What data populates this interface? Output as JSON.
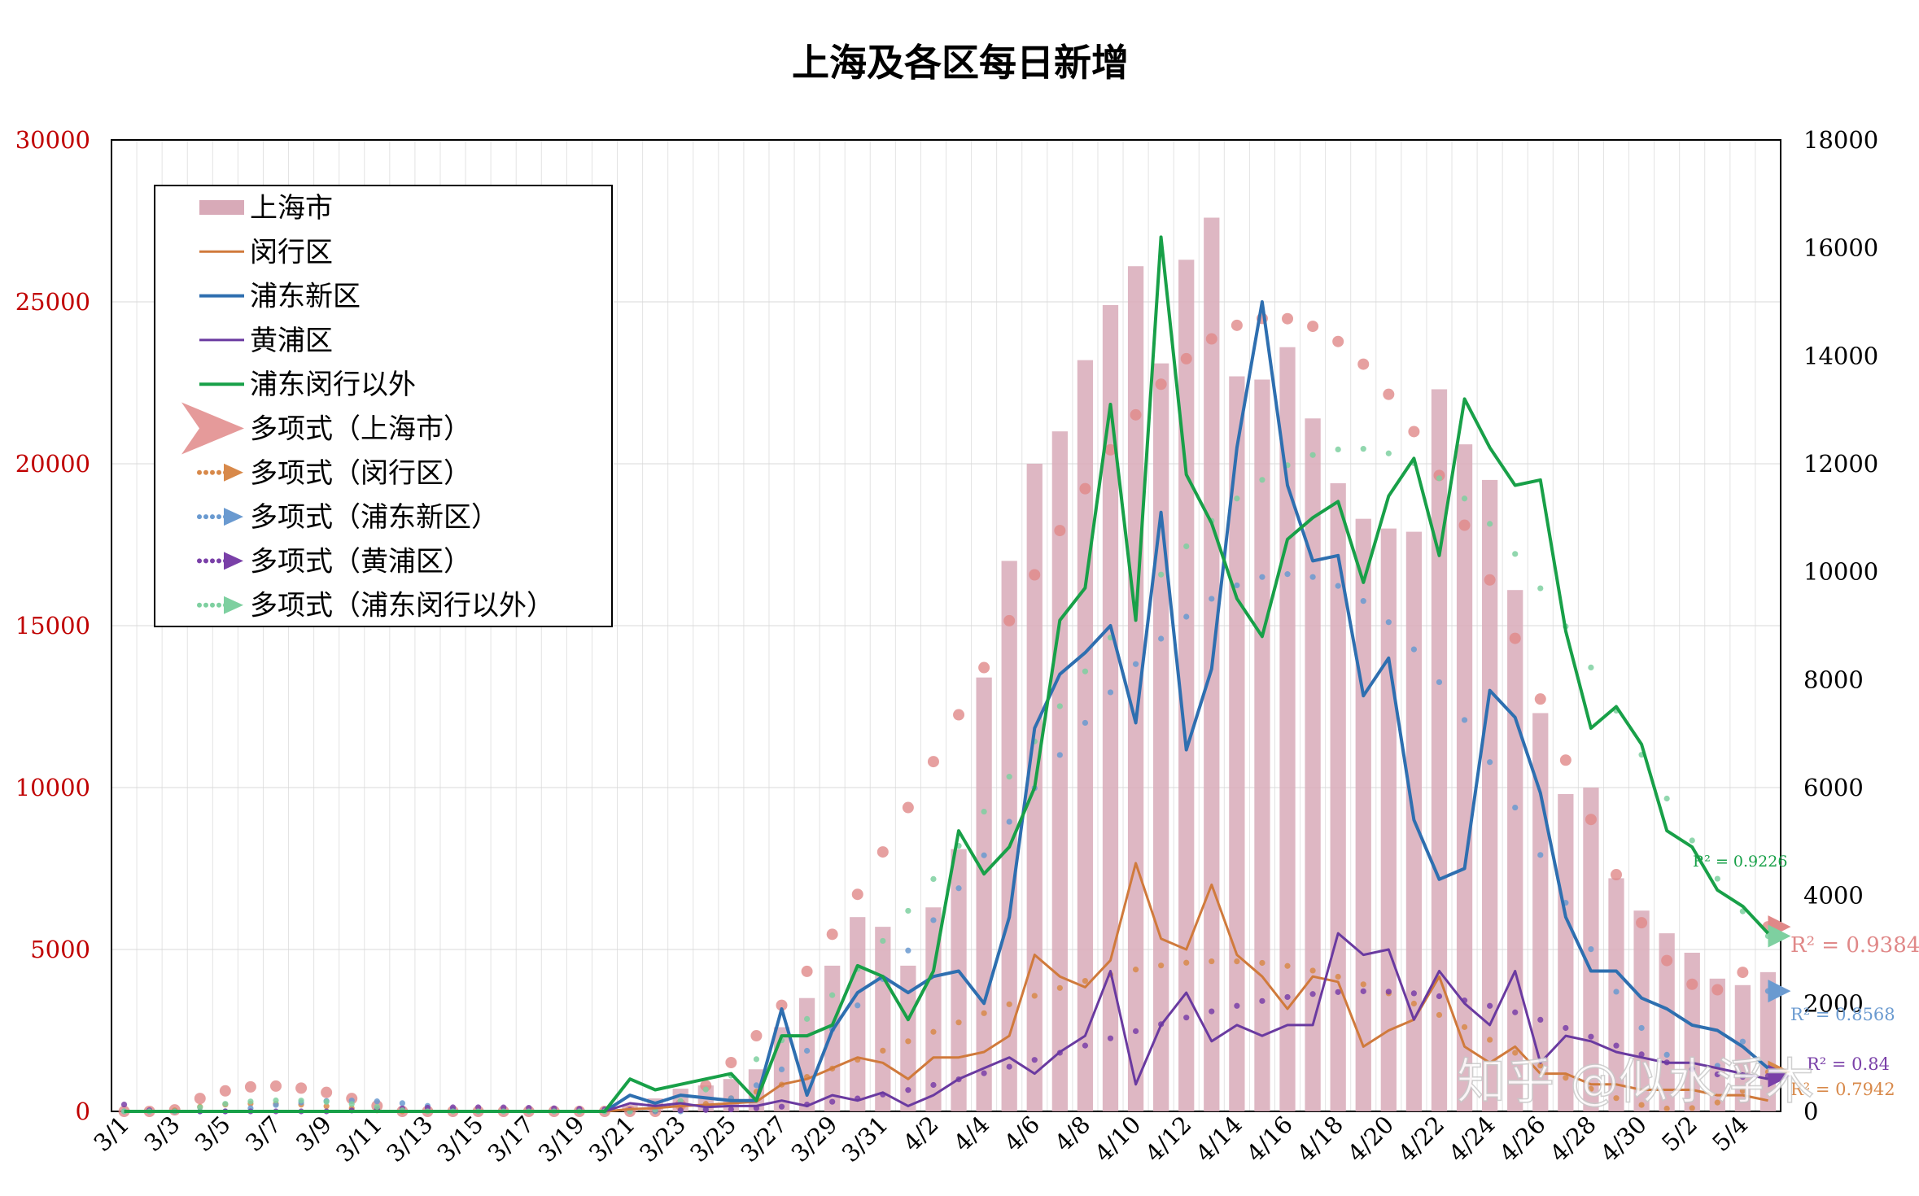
{
  "chart_data": {
    "type": "bar+line",
    "title": "上海及各区每日新增",
    "x_tick_labels": [
      "3/1",
      "3/3",
      "3/5",
      "3/7",
      "3/9",
      "3/11",
      "3/13",
      "3/15",
      "3/17",
      "3/19",
      "3/21",
      "3/23",
      "3/25",
      "3/27",
      "3/29",
      "3/31",
      "4/2",
      "4/4",
      "4/6",
      "4/8",
      "4/10",
      "4/12",
      "4/14",
      "4/16",
      "4/18",
      "4/20",
      "4/22",
      "4/24",
      "4/26",
      "4/28",
      "4/30",
      "5/2",
      "5/4"
    ],
    "y_left": {
      "range": [
        0,
        30000
      ],
      "ticks": [
        "0",
        "5000",
        "10000",
        "15000",
        "20000",
        "25000",
        "30000"
      ],
      "color": "#c00000"
    },
    "y_right": {
      "range": [
        0,
        18000
      ],
      "ticks": [
        "0",
        "2000",
        "4000",
        "6000",
        "8000",
        "10000",
        "12000",
        "14000",
        "16000",
        "18000"
      ],
      "color": "#000000"
    },
    "grid": true,
    "legend_position": "top-left",
    "legend": [
      "上海市",
      "闵行区",
      "浦东新区",
      "黄浦区",
      "浦东闵行以外",
      "多项式（上海市）",
      "多项式（闵行区）",
      "多项式（浦东新区）",
      "多项式（黄浦区）",
      "多项式（浦东闵行以外）"
    ],
    "bars": {
      "name": "上海市",
      "axis": "left",
      "color": "#d8aab8",
      "values": [
        0,
        0,
        0,
        0,
        0,
        0,
        0,
        0,
        0,
        0,
        0,
        0,
        0,
        0,
        0,
        0,
        0,
        0,
        0,
        0,
        200,
        400,
        700,
        800,
        1000,
        1300,
        2600,
        3500,
        4500,
        6000,
        5700,
        4500,
        6300,
        8100,
        13400,
        17000,
        20000,
        21000,
        23200,
        24900,
        26100,
        23100,
        26300,
        27600,
        22700,
        22600,
        23600,
        21400,
        19400,
        18300,
        18000,
        17900,
        22300,
        20600,
        19500,
        16100,
        12300,
        9800,
        10000,
        7200,
        6200,
        5500,
        4900,
        4100,
        3900,
        4300
      ]
    },
    "series": [
      {
        "name": "闵行区",
        "axis": "right",
        "color": "#d07a3c",
        "values": [
          0,
          0,
          0,
          0,
          0,
          0,
          0,
          0,
          0,
          0,
          0,
          0,
          0,
          0,
          0,
          0,
          0,
          0,
          0,
          0,
          40,
          60,
          100,
          120,
          150,
          180,
          500,
          600,
          800,
          1000,
          900,
          600,
          1000,
          1000,
          1100,
          1400,
          2900,
          2500,
          2300,
          2800,
          4600,
          3200,
          3000,
          4200,
          2900,
          2500,
          1900,
          2500,
          2400,
          1200,
          1500,
          1700,
          2500,
          1200,
          900,
          1200,
          700,
          700,
          500,
          500,
          400,
          400,
          400,
          300,
          300,
          200
        ]
      },
      {
        "name": "浦东新区",
        "axis": "right",
        "color": "#2e6fb0",
        "values": [
          0,
          0,
          0,
          0,
          0,
          0,
          0,
          0,
          0,
          0,
          0,
          0,
          0,
          0,
          0,
          0,
          0,
          0,
          0,
          0,
          300,
          150,
          300,
          250,
          200,
          200,
          1900,
          300,
          1500,
          2200,
          2500,
          2200,
          2500,
          2600,
          2000,
          3600,
          7100,
          8100,
          8500,
          9000,
          7200,
          11100,
          6700,
          8200,
          12300,
          15000,
          11600,
          10200,
          10300,
          7700,
          8400,
          5400,
          4300,
          4500,
          7800,
          7300,
          5900,
          3600,
          2600,
          2600,
          2100,
          1900,
          1600,
          1500,
          1200,
          800
        ]
      },
      {
        "name": "黄浦区",
        "axis": "right",
        "color": "#6a3aa0",
        "values": [
          0,
          0,
          0,
          0,
          0,
          0,
          0,
          0,
          0,
          0,
          0,
          0,
          0,
          0,
          0,
          0,
          0,
          0,
          0,
          0,
          150,
          100,
          150,
          80,
          100,
          100,
          200,
          100,
          300,
          200,
          350,
          100,
          300,
          600,
          800,
          1000,
          700,
          1100,
          1400,
          2600,
          500,
          1600,
          2200,
          1300,
          1600,
          1400,
          1600,
          1600,
          3300,
          2900,
          3000,
          1700,
          2600,
          2000,
          1600,
          2600,
          900,
          1400,
          1300,
          1100,
          1000,
          900,
          900,
          800,
          700,
          600
        ]
      },
      {
        "name": "浦东闵行以外",
        "axis": "right",
        "color": "#18a048",
        "values": [
          0,
          0,
          0,
          0,
          0,
          0,
          0,
          0,
          0,
          0,
          0,
          0,
          0,
          0,
          0,
          0,
          0,
          0,
          0,
          0,
          600,
          400,
          500,
          600,
          700,
          200,
          1400,
          1400,
          1600,
          2700,
          2500,
          1700,
          2600,
          5200,
          4400,
          4900,
          6000,
          9100,
          9700,
          13100,
          9100,
          16200,
          11800,
          10900,
          9500,
          8800,
          10600,
          11000,
          11300,
          9800,
          11400,
          12100,
          10300,
          13200,
          12300,
          11600,
          11700,
          8900,
          7100,
          7500,
          6800,
          5200,
          4900,
          4100,
          3800,
          3300
        ]
      }
    ],
    "trendlines": [
      {
        "name": "多项式（上海市）",
        "axis": "left",
        "color": "#e08888",
        "r2_label": "R² = 0.9384"
      },
      {
        "name": "多项式（闵行区）",
        "axis": "right",
        "color": "#d8894a",
        "r2_label": "R² = 0.7942"
      },
      {
        "name": "多项式（浦东新区）",
        "axis": "right",
        "color": "#6a9ad0",
        "r2_label": "R² = 0.8568"
      },
      {
        "name": "多项式（黄浦区）",
        "axis": "right",
        "color": "#7a40a8",
        "r2_label": "R² = 0.84"
      },
      {
        "name": "多项式（浦东闵行以外）",
        "axis": "right",
        "color": "#7ed0a0",
        "r2_label": "R² = 0.9226"
      }
    ]
  },
  "watermark": "知乎 @似水浮木"
}
